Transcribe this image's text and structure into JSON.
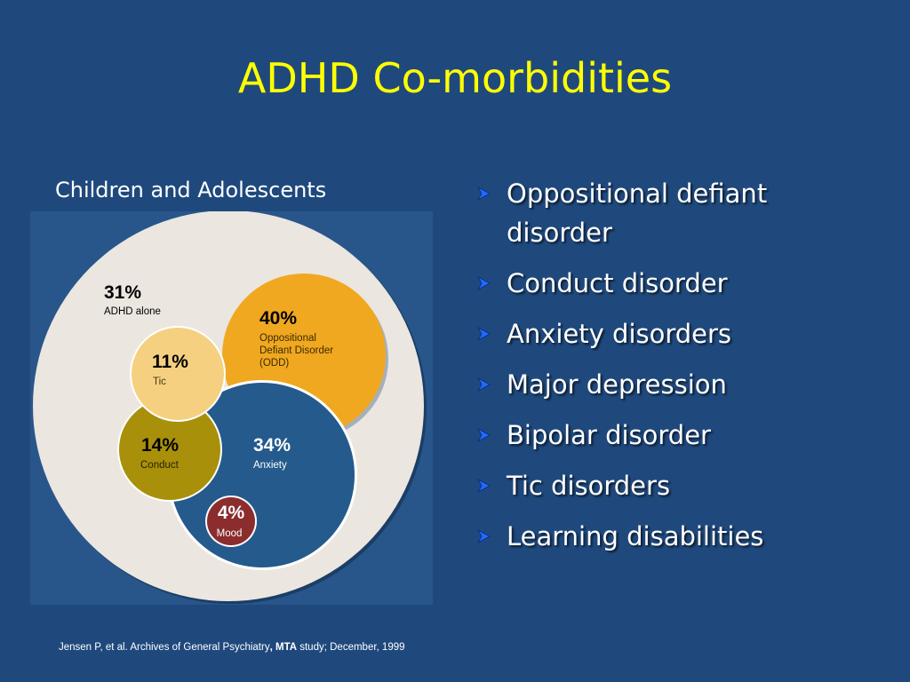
{
  "slide": {
    "title": "ADHD Co-morbidities",
    "subtitle": "Children and Adolescents"
  },
  "diagram": {
    "regions": [
      {
        "id": "adhd-alone",
        "value": "31%",
        "label": "ADHD alone",
        "color": "#ebe6e0"
      },
      {
        "id": "odd",
        "value": "40%",
        "label_lines": [
          "Oppositional",
          "Defiant Disorder",
          "(ODD)"
        ],
        "color": "#f0a820"
      },
      {
        "id": "tic",
        "value": "11%",
        "label": "Tic",
        "color": "#f5d080"
      },
      {
        "id": "conduct",
        "value": "14%",
        "label": "Conduct",
        "color": "#a8900a"
      },
      {
        "id": "anxiety",
        "value": "34%",
        "label": "Anxiety",
        "color": "#245a8c"
      },
      {
        "id": "mood",
        "value": "4%",
        "label": "Mood",
        "color": "#8b2d2d"
      }
    ]
  },
  "bullets": [
    {
      "lines": [
        "Oppositional defiant",
        "disorder"
      ]
    },
    {
      "lines": [
        "Conduct disorder"
      ]
    },
    {
      "lines": [
        "Anxiety disorders"
      ]
    },
    {
      "lines": [
        "Major depression"
      ]
    },
    {
      "lines": [
        "Bipolar disorder"
      ]
    },
    {
      "lines": [
        "Tic disorders"
      ]
    },
    {
      "lines": [
        "Learning disabilities"
      ]
    }
  ],
  "citation": {
    "prefix": "Jensen P, et al. Archives of General Psychiatry",
    "comma": ",",
    "bold": "MTA",
    "suffix": " study; December, 1999"
  },
  "icons": {
    "bullet": "arrow-bullet-icon"
  }
}
